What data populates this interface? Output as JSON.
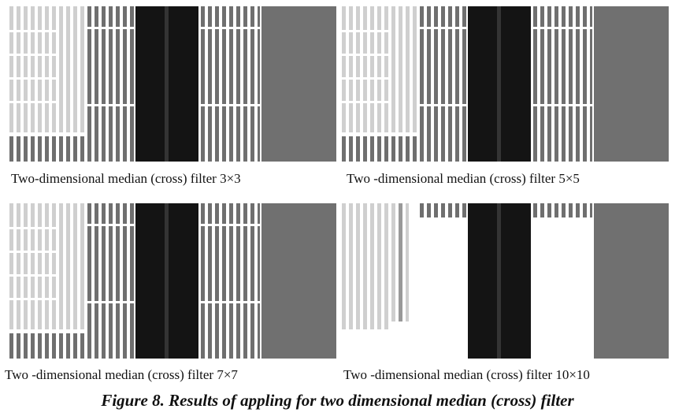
{
  "panels": [
    {
      "caption": "Two-dimensional median (cross) filter 3×3"
    },
    {
      "caption": "Two -dimensional median (cross) filter 5×5"
    },
    {
      "caption": "Two -dimensional median (cross) filter 7×7"
    },
    {
      "caption": "Two -dimensional median (cross) filter 10×10"
    }
  ],
  "figure_caption": "Figure 8. Results of appling for two dimensional median (cross) filter"
}
